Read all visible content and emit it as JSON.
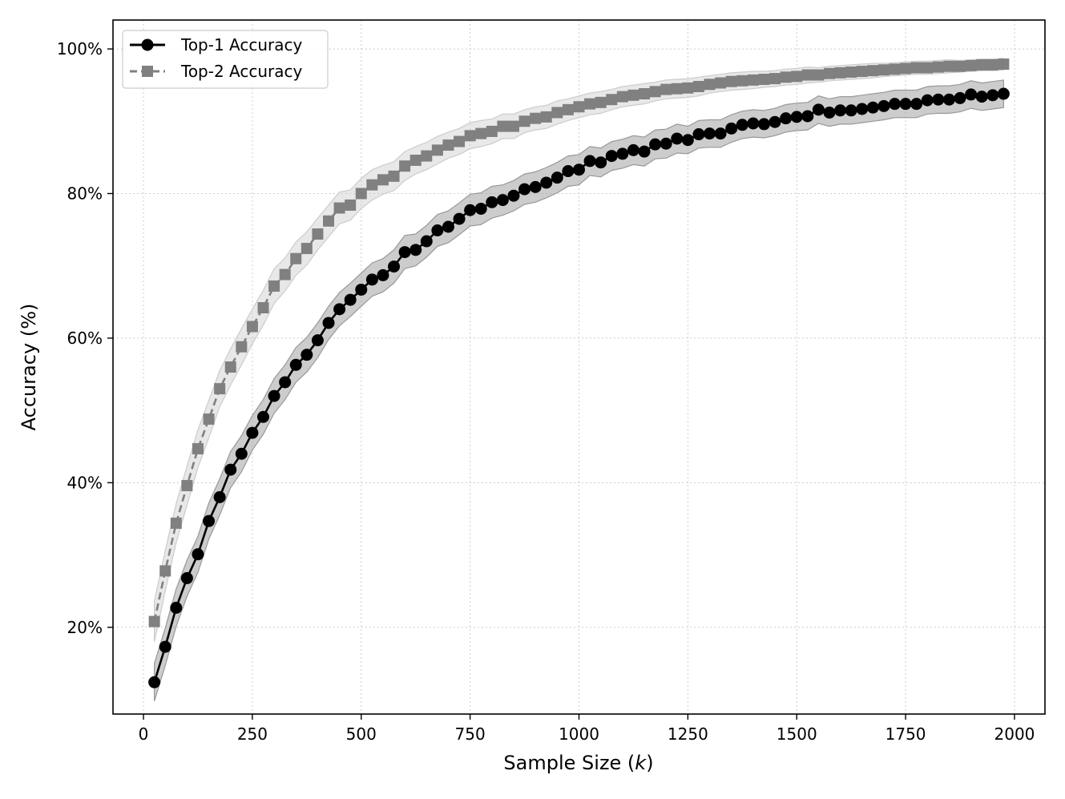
{
  "chart_data": {
    "type": "line",
    "title": "",
    "xlabel_prefix": "Sample Size (",
    "xlabel_var": "k",
    "xlabel_suffix": ")",
    "ylabel": "Accuracy (%)",
    "xlim": [
      -70,
      2070
    ],
    "ylim": [
      0.08,
      1.04
    ],
    "x_ticks": [
      0,
      250,
      500,
      750,
      1000,
      1250,
      1500,
      1750,
      2000
    ],
    "x_tick_labels": [
      "0",
      "250",
      "500",
      "750",
      "1000",
      "1250",
      "1500",
      "1750",
      "2000"
    ],
    "y_ticks": [
      0.2,
      0.4,
      0.6,
      0.8,
      1.0
    ],
    "y_tick_labels": [
      "20%",
      "40%",
      "60%",
      "80%",
      "100%"
    ],
    "grid": true,
    "legend_position": "top-left",
    "x": [
      25,
      50,
      75,
      100,
      125,
      150,
      175,
      200,
      225,
      250,
      275,
      300,
      325,
      350,
      375,
      400,
      425,
      450,
      475,
      500,
      525,
      550,
      575,
      600,
      625,
      650,
      675,
      700,
      725,
      750,
      775,
      800,
      825,
      850,
      875,
      900,
      925,
      950,
      975,
      1000,
      1025,
      1050,
      1075,
      1100,
      1125,
      1150,
      1175,
      1200,
      1225,
      1250,
      1275,
      1300,
      1325,
      1350,
      1375,
      1400,
      1425,
      1450,
      1475,
      1500,
      1525,
      1550,
      1575,
      1600,
      1625,
      1650,
      1675,
      1700,
      1725,
      1750,
      1775,
      1800,
      1825,
      1850,
      1875,
      1900,
      1925,
      1950,
      1975
    ],
    "series": [
      {
        "name": "Top-1 Accuracy",
        "color": "#000000",
        "line_style": "solid",
        "marker": "circle",
        "band_color": "#999999",
        "band_halfwidth": [
          0.026,
          0.026,
          0.026,
          0.025,
          0.025,
          0.025,
          0.025,
          0.025,
          0.025,
          0.024,
          0.024,
          0.024,
          0.024,
          0.024,
          0.024,
          0.024,
          0.023,
          0.023,
          0.023,
          0.023,
          0.023,
          0.023,
          0.023,
          0.023,
          0.022,
          0.022,
          0.022,
          0.022,
          0.022,
          0.022,
          0.022,
          0.022,
          0.021,
          0.021,
          0.021,
          0.021,
          0.021,
          0.021,
          0.021,
          0.021,
          0.02,
          0.02,
          0.02,
          0.02,
          0.02,
          0.02,
          0.02,
          0.02,
          0.02,
          0.019,
          0.019,
          0.019,
          0.019,
          0.019,
          0.019,
          0.019,
          0.019,
          0.019,
          0.019,
          0.019,
          0.019,
          0.019,
          0.019,
          0.019,
          0.019,
          0.019,
          0.019,
          0.019,
          0.019,
          0.019,
          0.019,
          0.019,
          0.019,
          0.019,
          0.019,
          0.019,
          0.019,
          0.019,
          0.019
        ],
        "values": [
          0.124,
          0.173,
          0.227,
          0.268,
          0.301,
          0.347,
          0.38,
          0.418,
          0.44,
          0.469,
          0.491,
          0.52,
          0.539,
          0.563,
          0.577,
          0.597,
          0.621,
          0.64,
          0.653,
          0.667,
          0.681,
          0.687,
          0.699,
          0.719,
          0.722,
          0.734,
          0.749,
          0.754,
          0.765,
          0.777,
          0.779,
          0.788,
          0.791,
          0.797,
          0.806,
          0.809,
          0.815,
          0.822,
          0.831,
          0.833,
          0.845,
          0.843,
          0.852,
          0.855,
          0.86,
          0.858,
          0.868,
          0.869,
          0.876,
          0.874,
          0.882,
          0.883,
          0.883,
          0.89,
          0.895,
          0.897,
          0.896,
          0.899,
          0.904,
          0.906,
          0.907,
          0.916,
          0.912,
          0.915,
          0.915,
          0.917,
          0.919,
          0.921,
          0.924,
          0.924,
          0.924,
          0.929,
          0.93,
          0.93,
          0.932,
          0.937,
          0.934,
          0.936,
          0.938
        ]
      },
      {
        "name": "Top-2 Accuracy",
        "color": "#808080",
        "line_style": "dashed",
        "marker": "square",
        "band_color": "#cccccc",
        "band_halfwidth": [
          0.028,
          0.028,
          0.027,
          0.027,
          0.026,
          0.026,
          0.025,
          0.025,
          0.025,
          0.024,
          0.024,
          0.024,
          0.023,
          0.023,
          0.023,
          0.022,
          0.022,
          0.022,
          0.021,
          0.021,
          0.021,
          0.02,
          0.02,
          0.02,
          0.019,
          0.019,
          0.019,
          0.018,
          0.018,
          0.018,
          0.018,
          0.017,
          0.017,
          0.017,
          0.016,
          0.016,
          0.016,
          0.016,
          0.015,
          0.015,
          0.015,
          0.015,
          0.014,
          0.014,
          0.014,
          0.014,
          0.013,
          0.013,
          0.013,
          0.013,
          0.013,
          0.012,
          0.012,
          0.012,
          0.012,
          0.012,
          0.011,
          0.011,
          0.011,
          0.011,
          0.011,
          0.01,
          0.01,
          0.01,
          0.01,
          0.01,
          0.01,
          0.009,
          0.009,
          0.009,
          0.009,
          0.009,
          0.009,
          0.009,
          0.008,
          0.008,
          0.008,
          0.008,
          0.008
        ],
        "values": [
          0.208,
          0.278,
          0.344,
          0.396,
          0.447,
          0.488,
          0.53,
          0.56,
          0.588,
          0.616,
          0.642,
          0.672,
          0.688,
          0.71,
          0.724,
          0.744,
          0.762,
          0.78,
          0.784,
          0.8,
          0.812,
          0.819,
          0.824,
          0.838,
          0.846,
          0.852,
          0.86,
          0.867,
          0.872,
          0.88,
          0.883,
          0.886,
          0.893,
          0.893,
          0.9,
          0.904,
          0.906,
          0.912,
          0.916,
          0.92,
          0.924,
          0.926,
          0.93,
          0.934,
          0.936,
          0.938,
          0.941,
          0.944,
          0.945,
          0.946,
          0.948,
          0.951,
          0.953,
          0.955,
          0.956,
          0.957,
          0.958,
          0.959,
          0.961,
          0.962,
          0.964,
          0.964,
          0.966,
          0.967,
          0.968,
          0.969,
          0.97,
          0.971,
          0.972,
          0.973,
          0.974,
          0.974,
          0.975,
          0.976,
          0.976,
          0.977,
          0.978,
          0.978,
          0.979
        ]
      }
    ]
  }
}
